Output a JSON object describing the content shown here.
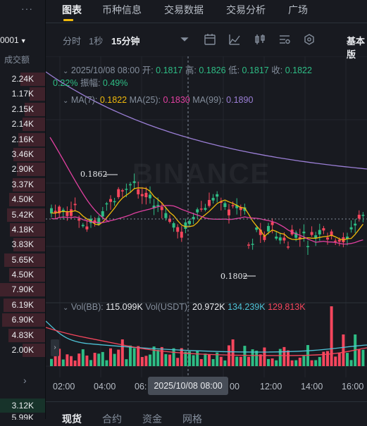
{
  "left_panel": {
    "dots": "···",
    "price_header": "0001",
    "volume_header": "成交额",
    "rows": [
      {
        "v": "2.24K",
        "fill": 0.55
      },
      {
        "v": "1.17K",
        "fill": 0.35
      },
      {
        "v": "2.15K",
        "fill": 0.45
      },
      {
        "v": "2.14K",
        "fill": 0.5
      },
      {
        "v": "2.16K",
        "fill": 0.6
      },
      {
        "v": "3.46K",
        "fill": 0.7
      },
      {
        "v": "2.90K",
        "fill": 0.62
      },
      {
        "v": "3.37K",
        "fill": 0.72
      },
      {
        "v": "4.50K",
        "fill": 0.8
      },
      {
        "v": "5.42K",
        "fill": 0.85
      },
      {
        "v": "4.18K",
        "fill": 0.78
      },
      {
        "v": "3.83K",
        "fill": 0.7
      },
      {
        "v": "5.65K",
        "fill": 0.9
      },
      {
        "v": "4.50K",
        "fill": 0.8
      },
      {
        "v": "7.90K",
        "fill": 1.0
      },
      {
        "v": "6.19K",
        "fill": 0.92
      },
      {
        "v": "6.90K",
        "fill": 0.95
      },
      {
        "v": "4.83K",
        "fill": 0.82
      },
      {
        "v": "2.00K",
        "fill": 0.5
      }
    ],
    "chevron": "›",
    "bottom_value": "3.12K",
    "bottom_value2": "5.99K"
  },
  "tabs": [
    "图表",
    "币种信息",
    "交易数据",
    "交易分析",
    "广场"
  ],
  "toolbar": {
    "time": "分时",
    "sec": "1秒",
    "interval": "15分钟",
    "right_label": "基本版"
  },
  "ohlc": {
    "date": "2025/10/08 08:00",
    "open_label": "开:",
    "open": "0.1817",
    "high_label": "高:",
    "high": "0.1826",
    "low_label": "低:",
    "low": "0.1817",
    "close_label": "收:",
    "close": "0.1822",
    "change": "0.22%",
    "amp_label": "振幅:",
    "amp": "0.49%"
  },
  "ma": {
    "ma7_label": "MA(7):",
    "ma7": "0.1822",
    "ma25_label": "MA(25):",
    "ma25": "0.1830",
    "ma99_label": "MA(99):",
    "ma99": "0.1890"
  },
  "vol": {
    "vbb_label": "Vol(BB):",
    "vbb": "115.099K",
    "vusdt_label": "Vol(USDT):",
    "vusdt": "20.972K",
    "v2": "134.239K",
    "v3": "129.813K"
  },
  "watermark": "BINANCE",
  "annotations": {
    "high": "0.1862",
    "low": "0.1802"
  },
  "times": [
    "02:00",
    "04:00",
    "06:",
    "00",
    "12:00",
    "14:00",
    "16:00"
  ],
  "crosshair_time": "2025/10/08 08:00",
  "bottom_tabs": [
    "现货",
    "合约",
    "资金",
    "网格"
  ],
  "colors": {
    "up": "#2ebd85",
    "down": "#f6465d",
    "ma7": "#f0b90b",
    "ma25": "#e040a0",
    "ma99": "#9b7fd6",
    "accent": "#f0b90b"
  }
}
